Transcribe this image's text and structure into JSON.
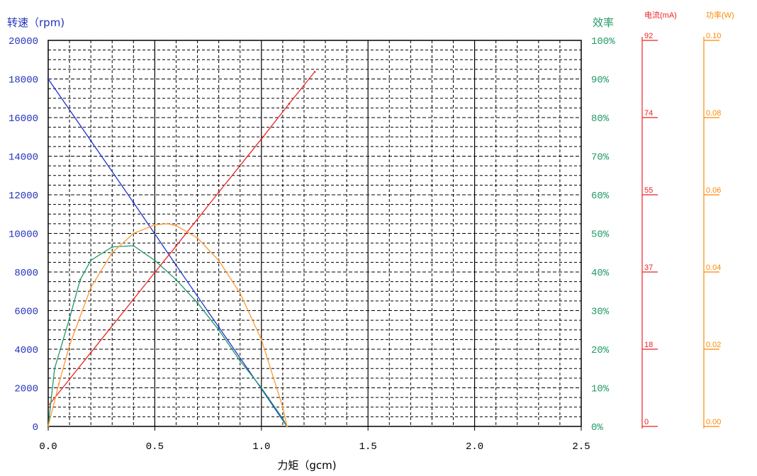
{
  "chart_data": {
    "type": "line",
    "title": "",
    "xlabel": "力矩（gcm)",
    "xlim": [
      0,
      2.5
    ],
    "x_ticks": [
      "0.0",
      "0.5",
      "1.0",
      "1.5",
      "2.0",
      "2.5"
    ],
    "grid": true,
    "axes": {
      "speed": {
        "label": "转速（rpm)",
        "range": [
          0,
          20000
        ],
        "ticks": [
          "0",
          "2000",
          "4000",
          "6000",
          "8000",
          "10000",
          "12000",
          "14000",
          "16000",
          "18000",
          "20000"
        ],
        "color": "#2233bb"
      },
      "efficiency": {
        "label": "效率",
        "range": [
          0,
          100
        ],
        "ticks": [
          "0%",
          "10%",
          "20%",
          "30%",
          "40%",
          "50%",
          "60%",
          "70%",
          "80%",
          "90%",
          "100%"
        ],
        "color": "#229966"
      },
      "current": {
        "label": "电流(mA)",
        "range": [
          0,
          92
        ],
        "ticks": [
          "0",
          "18",
          "37",
          "55",
          "74",
          "92"
        ],
        "color": "#ee2222"
      },
      "power": {
        "label": "功率(W)",
        "range": [
          0,
          0.1
        ],
        "ticks": [
          "0.00",
          "0.02",
          "0.04",
          "0.06",
          "0.08",
          "0.10"
        ],
        "color": "#ff8800"
      }
    },
    "series": [
      {
        "axis": "speed",
        "color": "#2233cc",
        "x": [
          0,
          0.2,
          0.4,
          0.6,
          0.8,
          1.0,
          1.12
        ],
        "y": [
          18000,
          14800,
          11600,
          8350,
          5150,
          1950,
          0
        ]
      },
      {
        "axis": "current",
        "color": "#ee2222",
        "x": [
          0,
          0.2,
          0.4,
          0.5,
          0.6,
          0.8,
          1.0,
          1.13,
          1.25
        ],
        "y": [
          4.9,
          17.6,
          30.3,
          36.7,
          43.0,
          55.8,
          68.5,
          76.9,
          84.5
        ]
      },
      {
        "axis": "efficiency",
        "color": "#229966",
        "x": [
          0,
          0.03,
          0.1,
          0.15,
          0.2,
          0.3,
          0.4,
          0.5,
          0.6,
          0.7,
          0.8,
          0.9,
          1.0,
          1.1,
          1.12
        ],
        "y": [
          0,
          15,
          28,
          38,
          43,
          46.5,
          46.8,
          43,
          38,
          32,
          25,
          17,
          10,
          2,
          0
        ]
      },
      {
        "axis": "power",
        "color": "#ff9933",
        "x": [
          0,
          0.05,
          0.1,
          0.2,
          0.3,
          0.4,
          0.5,
          0.56,
          0.6,
          0.7,
          0.8,
          0.9,
          1.0,
          1.1,
          1.12
        ],
        "y": [
          0,
          0.011,
          0.021,
          0.036,
          0.045,
          0.05,
          0.0522,
          0.0525,
          0.052,
          0.0488,
          0.043,
          0.0345,
          0.0225,
          0.005,
          0
        ]
      }
    ]
  }
}
